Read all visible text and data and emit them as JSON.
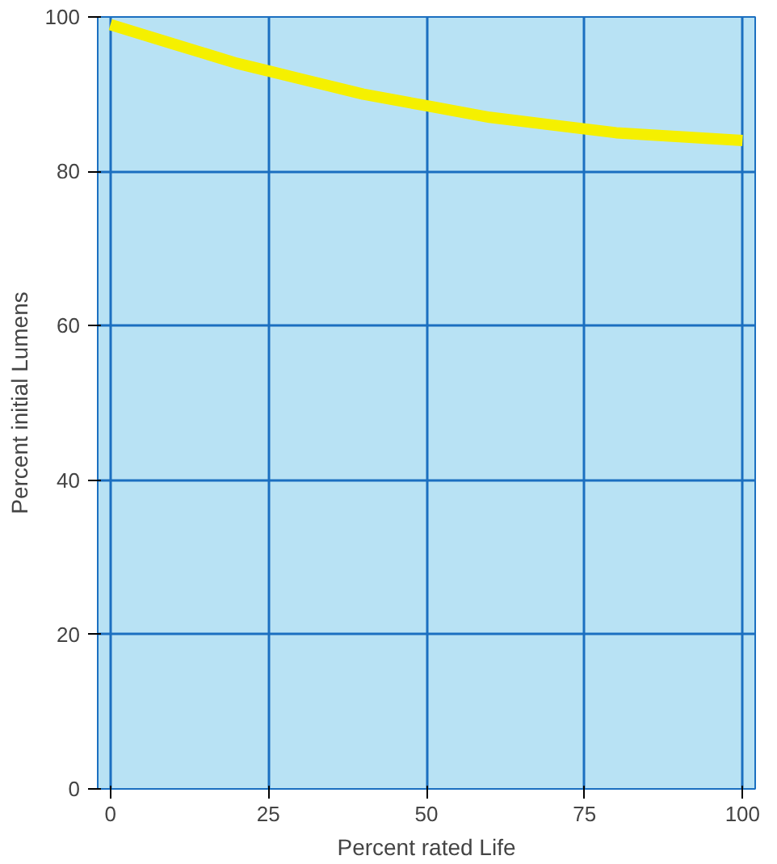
{
  "chart_data": {
    "type": "line",
    "xlabel": "Percent rated Life",
    "ylabel": "Percent initial Lumens",
    "x": [
      0,
      10,
      20,
      25,
      30,
      40,
      50,
      60,
      70,
      75,
      80,
      90,
      100
    ],
    "series": [
      {
        "color": "#f5f000",
        "values": [
          99,
          96.5,
          94,
          93,
          92,
          90,
          88.5,
          87,
          86,
          85.5,
          85,
          84.5,
          84
        ]
      }
    ],
    "xlim": [
      -2,
      102
    ],
    "ylim": [
      0,
      100
    ],
    "xticks": [
      0,
      25,
      50,
      75,
      100
    ],
    "yticks": [
      0,
      20,
      40,
      60,
      80,
      100
    ],
    "grid": true
  }
}
